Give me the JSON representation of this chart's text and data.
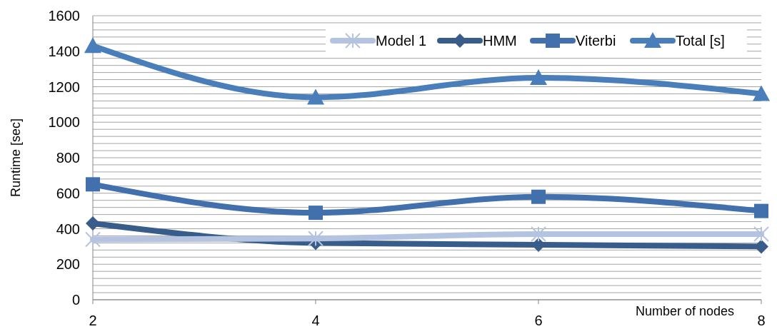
{
  "chart_data": {
    "type": "line",
    "xlabel": "Number of nodes",
    "ylabel": "Runtime [sec]",
    "x": [
      2,
      4,
      6,
      8
    ],
    "xlim": [
      2,
      8
    ],
    "xticks": [
      2,
      4,
      6,
      8
    ],
    "ylim": [
      0,
      1600
    ],
    "yticks": [
      0,
      {
        "value": 40,
        "label": null
      },
      {
        "value": 80,
        "label": null
      },
      {
        "value": 120,
        "label": null
      },
      {
        "value": 160,
        "label": null
      },
      200,
      {
        "value": 240,
        "label": null
      },
      {
        "value": 280,
        "label": null
      },
      {
        "value": 320,
        "label": null
      },
      {
        "value": 360,
        "label": null
      },
      400,
      {
        "value": 440,
        "label": null
      },
      {
        "value": 480,
        "label": null
      },
      {
        "value": 520,
        "label": null
      },
      {
        "value": 560,
        "label": null
      },
      600,
      {
        "value": 640,
        "label": null
      },
      {
        "value": 680,
        "label": null
      },
      {
        "value": 720,
        "label": null
      },
      {
        "value": 760,
        "label": null
      },
      800,
      {
        "value": 840,
        "label": null
      },
      {
        "value": 880,
        "label": null
      },
      {
        "value": 920,
        "label": null
      },
      {
        "value": 960,
        "label": null
      },
      1000,
      {
        "value": 1040,
        "label": null
      },
      {
        "value": 1080,
        "label": null
      },
      {
        "value": 1120,
        "label": null
      },
      {
        "value": 1160,
        "label": null
      },
      1200,
      {
        "value": 1240,
        "label": null
      },
      {
        "value": 1280,
        "label": null
      },
      {
        "value": 1320,
        "label": null
      },
      {
        "value": 1360,
        "label": null
      },
      1400,
      {
        "value": 1440,
        "label": null
      },
      {
        "value": 1480,
        "label": null
      },
      {
        "value": 1520,
        "label": null
      },
      {
        "value": 1560,
        "label": null
      },
      1600
    ],
    "grid": "y",
    "legend": "top right",
    "line_style": "solid",
    "series": [
      {
        "name": "Model 1",
        "color": "#b4c3df",
        "marker": "cross",
        "values": [
          340,
          345,
          370,
          370
        ]
      },
      {
        "name": "HMM",
        "color": "#385d8a",
        "marker": "diamond",
        "values": [
          430,
          320,
          310,
          300
        ]
      },
      {
        "name": "Viterbi",
        "color": "#4170ad",
        "marker": "square",
        "values": [
          650,
          490,
          580,
          500
        ]
      },
      {
        "name": "Total [s]",
        "color": "#4a7ebb",
        "marker": "triangle",
        "values": [
          1430,
          1140,
          1250,
          1160
        ]
      }
    ]
  }
}
